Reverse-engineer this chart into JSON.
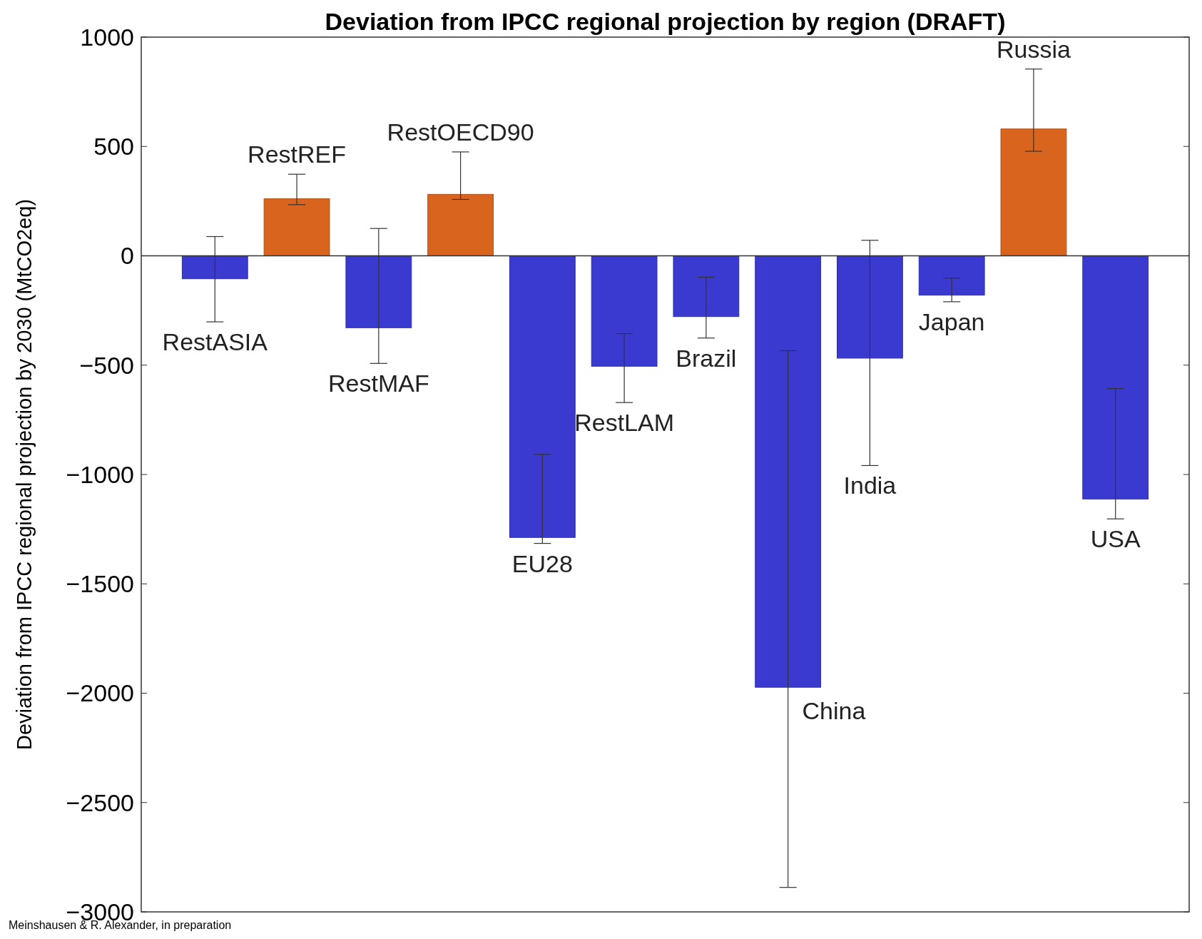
{
  "chart_data": {
    "type": "bar",
    "title": "Deviation from IPCC regional projection by region (DRAFT)",
    "ylabel": "Deviation from IPCC regional projection by 2030 (MtCO2eq)",
    "categories": [
      "RestASIA",
      "RestREF",
      "RestMAF",
      "RestOECD90",
      "EU28",
      "RestLAM",
      "Brazil",
      "China",
      "India",
      "Japan",
      "Russia",
      "USA"
    ],
    "values": [
      -105,
      261,
      -329,
      281,
      -1288,
      -505,
      -278,
      -1973,
      -468,
      -180,
      580,
      -1112
    ],
    "errors": [
      [
        -302,
        88
      ],
      [
        234,
        373
      ],
      [
        -492,
        125
      ],
      [
        258,
        475
      ],
      [
        -1315,
        -908
      ],
      [
        -671,
        -356
      ],
      [
        -376,
        -98
      ],
      [
        -2888,
        -434
      ],
      [
        -959,
        71
      ],
      [
        -210,
        -102
      ],
      [
        478,
        854
      ],
      [
        -1203,
        -607
      ]
    ],
    "colors": [
      "#3a3ad0",
      "#d9641e",
      "#3a3ad0",
      "#d9641e",
      "#3a3ad0",
      "#3a3ad0",
      "#3a3ad0",
      "#3a3ad0",
      "#3a3ad0",
      "#3a3ad0",
      "#d9641e",
      "#3a3ad0"
    ],
    "ylim": [
      -3000,
      1000
    ],
    "yticks": [
      -3000,
      -2500,
      -2000,
      -1500,
      -1000,
      -500,
      0,
      500,
      1000
    ],
    "annotations": [
      "Meinshausen & R. Alexander, in preparation"
    ]
  }
}
